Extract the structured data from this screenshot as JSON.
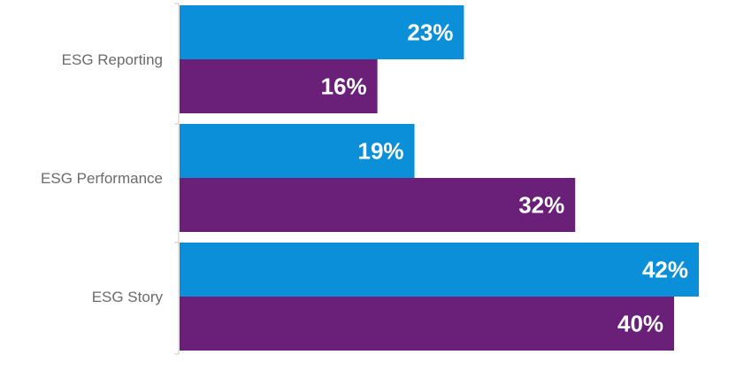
{
  "chart_data": {
    "type": "bar",
    "orientation": "horizontal",
    "categories": [
      "ESG Reporting",
      "ESG Performance",
      "ESG Story"
    ],
    "series": [
      {
        "values": [
          23,
          19,
          42
        ],
        "color": "#0a8fd8"
      },
      {
        "values": [
          16,
          32,
          40
        ],
        "color": "#6a1f78"
      }
    ],
    "value_format": "{v}%",
    "xlim": [
      0,
      45
    ],
    "grid": false,
    "legend": "none",
    "axis_color": "#c8c8c8",
    "label_color": "#6b6b6b"
  }
}
